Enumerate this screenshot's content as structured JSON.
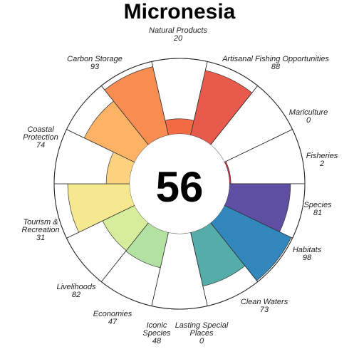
{
  "chart_data": {
    "type": "polar-bar",
    "title": "Micronesia",
    "overall_score": "56",
    "max_value": 100,
    "petals": [
      {
        "name": "Natural Products",
        "value": 20,
        "color": "#F26B43"
      },
      {
        "name": "Artisanal Fishing Opportunities",
        "value": 88,
        "color": "#E85A4B"
      },
      {
        "name": "Mariculture",
        "value": 0,
        "color": "#E0474C"
      },
      {
        "name": "Fisheries",
        "value": 2,
        "color": "#C9344A"
      },
      {
        "name": "Species",
        "value": 81,
        "color": "#5E4FA2"
      },
      {
        "name": "Habitats",
        "value": 98,
        "color": "#3288BD"
      },
      {
        "name": "Clean Waters",
        "value": 73,
        "color": "#55ADA9"
      },
      {
        "name": "Lasting Special Places",
        "value": 0,
        "color": "#88CFA4"
      },
      {
        "name": "Iconic Species",
        "value": 48,
        "color": "#B3E1A2"
      },
      {
        "name": "Economies",
        "value": 47,
        "color": "#D6EE9B"
      },
      {
        "name": "Livelihoods",
        "value": 82,
        "color": "#F5E88E"
      },
      {
        "name": "Tourism & Recreation",
        "value": 31,
        "color": "#FDD27F"
      },
      {
        "name": "Coastal Protection",
        "value": 74,
        "color": "#FDB365"
      },
      {
        "name": "Carbon Storage",
        "value": 93,
        "color": "#F88D52"
      }
    ],
    "labels": [
      {
        "lines": [
          "Natural Products"
        ],
        "value": "20"
      },
      {
        "lines": [
          "Artisanal Fishing Opportunities"
        ],
        "value": "88"
      },
      {
        "lines": [
          "Mariculture"
        ],
        "value": "0"
      },
      {
        "lines": [
          "Fisheries"
        ],
        "value": "2"
      },
      {
        "lines": [
          "Species"
        ],
        "value": "81"
      },
      {
        "lines": [
          "Habitats"
        ],
        "value": "98"
      },
      {
        "lines": [
          "Clean Waters"
        ],
        "value": "73"
      },
      {
        "lines": [
          "Lasting Special",
          "Places"
        ],
        "value": "0"
      },
      {
        "lines": [
          "Iconic",
          "Species"
        ],
        "value": "48"
      },
      {
        "lines": [
          "Economies"
        ],
        "value": "47"
      },
      {
        "lines": [
          "Livelihoods"
        ],
        "value": "82"
      },
      {
        "lines": [
          "Tourism &",
          "Recreation"
        ],
        "value": "31"
      },
      {
        "lines": [
          "Coastal",
          "Protection"
        ],
        "value": "74"
      },
      {
        "lines": [
          "Carbon Storage"
        ],
        "value": "93"
      }
    ]
  }
}
